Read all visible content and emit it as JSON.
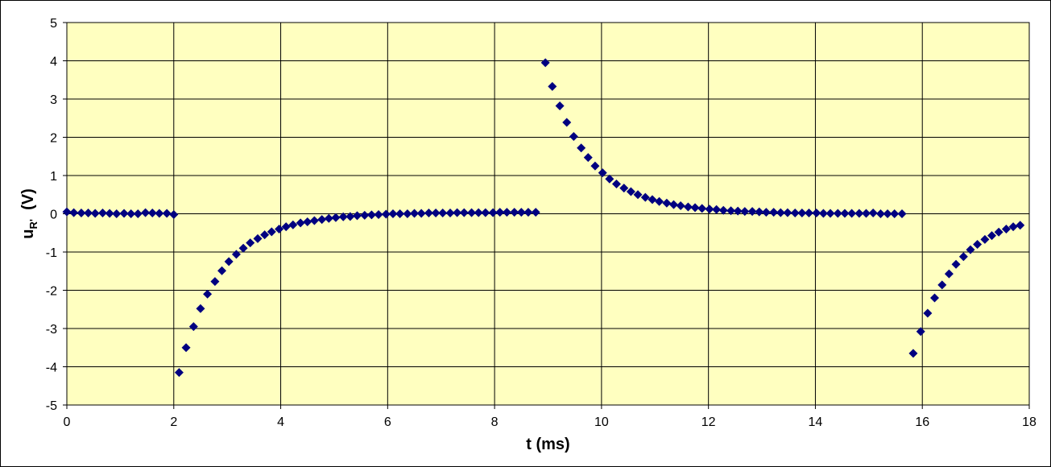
{
  "chart_data": {
    "type": "scatter",
    "xlabel": "t  (ms)",
    "ylabel": {
      "main": "u",
      "sub": "R'",
      "unit": "  (V)"
    },
    "xlim": [
      0,
      18
    ],
    "ylim": [
      -5,
      5
    ],
    "x_ticks": [
      0,
      2,
      4,
      6,
      8,
      10,
      12,
      14,
      16,
      18
    ],
    "y_ticks": [
      5,
      4,
      3,
      2,
      1,
      0,
      -1,
      -2,
      -3,
      -4,
      -5
    ],
    "grid": true,
    "legend": "none",
    "plot_background": "#FFFFC0",
    "marker_color": "#000080",
    "marker": "diamond",
    "series": [
      {
        "points": [
          [
            0,
            0.05
          ],
          [
            0.13,
            0.03
          ],
          [
            0.27,
            0.02
          ],
          [
            0.4,
            0.02
          ],
          [
            0.53,
            0.01
          ],
          [
            0.67,
            0.02
          ],
          [
            0.8,
            0.01
          ],
          [
            0.93,
            0.0
          ],
          [
            1.07,
            0.01
          ],
          [
            1.2,
            0.0
          ],
          [
            1.33,
            0.0
          ],
          [
            1.47,
            0.03
          ],
          [
            1.6,
            0.02
          ],
          [
            1.73,
            0.01
          ],
          [
            1.87,
            0.01
          ],
          [
            2.0,
            -0.02
          ],
          [
            2.1,
            -4.15
          ],
          [
            2.23,
            -3.5
          ],
          [
            2.37,
            -2.95
          ],
          [
            2.5,
            -2.48
          ],
          [
            2.63,
            -2.1
          ],
          [
            2.77,
            -1.77
          ],
          [
            2.9,
            -1.49
          ],
          [
            3.03,
            -1.25
          ],
          [
            3.17,
            -1.06
          ],
          [
            3.3,
            -0.9
          ],
          [
            3.43,
            -0.76
          ],
          [
            3.57,
            -0.65
          ],
          [
            3.7,
            -0.55
          ],
          [
            3.83,
            -0.47
          ],
          [
            3.97,
            -0.4
          ],
          [
            4.1,
            -0.34
          ],
          [
            4.23,
            -0.29
          ],
          [
            4.37,
            -0.24
          ],
          [
            4.5,
            -0.21
          ],
          [
            4.63,
            -0.18
          ],
          [
            4.77,
            -0.15
          ],
          [
            4.9,
            -0.12
          ],
          [
            5.03,
            -0.1
          ],
          [
            5.17,
            -0.08
          ],
          [
            5.3,
            -0.07
          ],
          [
            5.43,
            -0.05
          ],
          [
            5.57,
            -0.04
          ],
          [
            5.7,
            -0.03
          ],
          [
            5.83,
            -0.02
          ],
          [
            5.97,
            -0.01
          ],
          [
            6.1,
            0.0
          ],
          [
            6.23,
            0.0
          ],
          [
            6.37,
            0.0
          ],
          [
            6.5,
            0.01
          ],
          [
            6.63,
            0.01
          ],
          [
            6.77,
            0.02
          ],
          [
            6.9,
            0.02
          ],
          [
            7.03,
            0.02
          ],
          [
            7.17,
            0.02
          ],
          [
            7.3,
            0.03
          ],
          [
            7.43,
            0.03
          ],
          [
            7.57,
            0.03
          ],
          [
            7.7,
            0.03
          ],
          [
            7.83,
            0.03
          ],
          [
            7.97,
            0.03
          ],
          [
            8.1,
            0.04
          ],
          [
            8.23,
            0.04
          ],
          [
            8.37,
            0.04
          ],
          [
            8.5,
            0.04
          ],
          [
            8.63,
            0.04
          ],
          [
            8.77,
            0.04
          ],
          [
            8.95,
            3.95
          ],
          [
            9.08,
            3.33
          ],
          [
            9.22,
            2.82
          ],
          [
            9.35,
            2.39
          ],
          [
            9.48,
            2.02
          ],
          [
            9.62,
            1.72
          ],
          [
            9.75,
            1.47
          ],
          [
            9.88,
            1.25
          ],
          [
            10.02,
            1.07
          ],
          [
            10.15,
            0.91
          ],
          [
            10.28,
            0.78
          ],
          [
            10.42,
            0.67
          ],
          [
            10.55,
            0.58
          ],
          [
            10.68,
            0.5
          ],
          [
            10.82,
            0.43
          ],
          [
            10.95,
            0.37
          ],
          [
            11.08,
            0.32
          ],
          [
            11.22,
            0.28
          ],
          [
            11.35,
            0.24
          ],
          [
            11.48,
            0.21
          ],
          [
            11.62,
            0.18
          ],
          [
            11.75,
            0.16
          ],
          [
            11.88,
            0.14
          ],
          [
            12.02,
            0.12
          ],
          [
            12.15,
            0.11
          ],
          [
            12.28,
            0.09
          ],
          [
            12.42,
            0.08
          ],
          [
            12.55,
            0.07
          ],
          [
            12.68,
            0.06
          ],
          [
            12.82,
            0.06
          ],
          [
            12.95,
            0.05
          ],
          [
            13.08,
            0.04
          ],
          [
            13.22,
            0.04
          ],
          [
            13.35,
            0.03
          ],
          [
            13.48,
            0.03
          ],
          [
            13.62,
            0.02
          ],
          [
            13.75,
            0.02
          ],
          [
            13.88,
            0.02
          ],
          [
            14.02,
            0.02
          ],
          [
            14.15,
            0.01
          ],
          [
            14.28,
            0.01
          ],
          [
            14.42,
            0.01
          ],
          [
            14.55,
            0.01
          ],
          [
            14.68,
            0.01
          ],
          [
            14.82,
            0.01
          ],
          [
            14.95,
            0.01
          ],
          [
            15.08,
            0.02
          ],
          [
            15.22,
            0.0
          ],
          [
            15.35,
            0.0
          ],
          [
            15.48,
            0.0
          ],
          [
            15.62,
            0.0
          ],
          [
            15.83,
            -3.65
          ],
          [
            15.97,
            -3.08
          ],
          [
            16.1,
            -2.6
          ],
          [
            16.23,
            -2.2
          ],
          [
            16.37,
            -1.86
          ],
          [
            16.5,
            -1.57
          ],
          [
            16.63,
            -1.32
          ],
          [
            16.77,
            -1.12
          ],
          [
            16.9,
            -0.94
          ],
          [
            17.03,
            -0.8
          ],
          [
            17.17,
            -0.67
          ],
          [
            17.3,
            -0.57
          ],
          [
            17.43,
            -0.48
          ],
          [
            17.57,
            -0.4
          ],
          [
            17.7,
            -0.34
          ],
          [
            17.83,
            -0.3
          ]
        ]
      }
    ]
  }
}
